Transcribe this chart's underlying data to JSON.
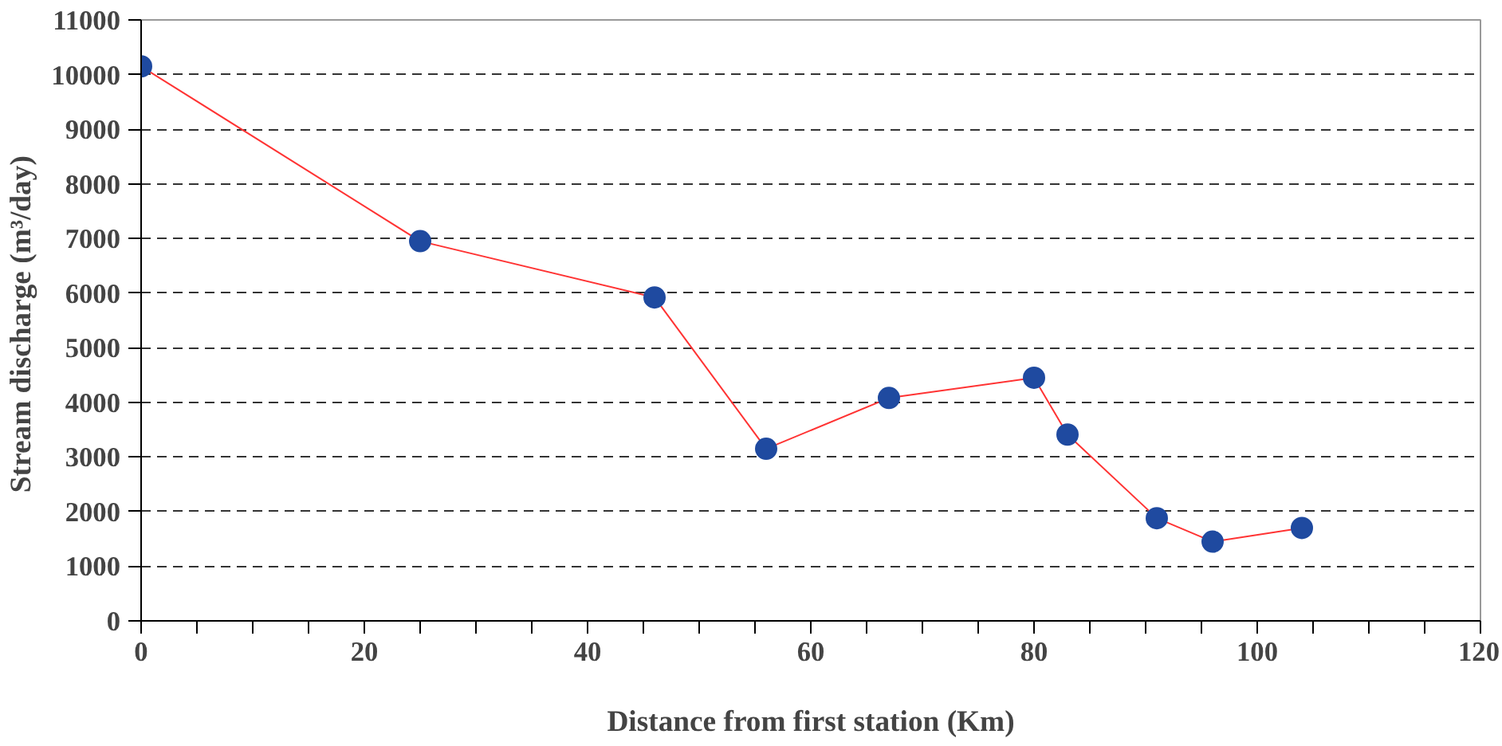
{
  "chart_data": {
    "type": "line",
    "xlabel": "Distance from first station (Km)",
    "ylabel": "Stream discharge  (m³/day)",
    "x": [
      0,
      25,
      46,
      56,
      67,
      80,
      83,
      91,
      96,
      104
    ],
    "series": [
      {
        "color": "#ff3333",
        "colors": [
          "#1f4aa0",
          "#1f4aa0",
          "#1f4aa0",
          "#1f4aa0",
          "#1f4aa0",
          "#1f4aa0",
          "#1f4aa0",
          "#1f4aa0",
          "#1f4aa0",
          "#1f4aa0"
        ],
        "values": [
          10150,
          6950,
          5920,
          3150,
          4080,
          4450,
          3410,
          1880,
          1450,
          1700
        ]
      }
    ],
    "marker": "circle",
    "xlim": [
      0,
      120
    ],
    "xticks": [
      0,
      {
        "value": 5,
        "label": null
      },
      {
        "value": 10,
        "label": null
      },
      {
        "value": 15,
        "label": null
      },
      20,
      {
        "value": 25,
        "label": null
      },
      {
        "value": 30,
        "label": null
      },
      {
        "value": 35,
        "label": null
      },
      40,
      {
        "value": 45,
        "label": null
      },
      {
        "value": 50,
        "label": null
      },
      {
        "value": 55,
        "label": null
      },
      60,
      {
        "value": 65,
        "label": null
      },
      {
        "value": 70,
        "label": null
      },
      {
        "value": 75,
        "label": null
      },
      80,
      {
        "value": 85,
        "label": null
      },
      {
        "value": 90,
        "label": null
      },
      {
        "value": 95,
        "label": null
      },
      100,
      {
        "value": 105,
        "label": null
      },
      {
        "value": 110,
        "label": null
      },
      {
        "value": 115,
        "label": null
      },
      120
    ],
    "ylim": [
      0,
      11000
    ],
    "yticks": [
      0,
      1000,
      2000,
      3000,
      4000,
      5000,
      6000,
      7000,
      8000,
      9000,
      10000,
      11000
    ],
    "grid": "y",
    "line_style": "solid"
  }
}
